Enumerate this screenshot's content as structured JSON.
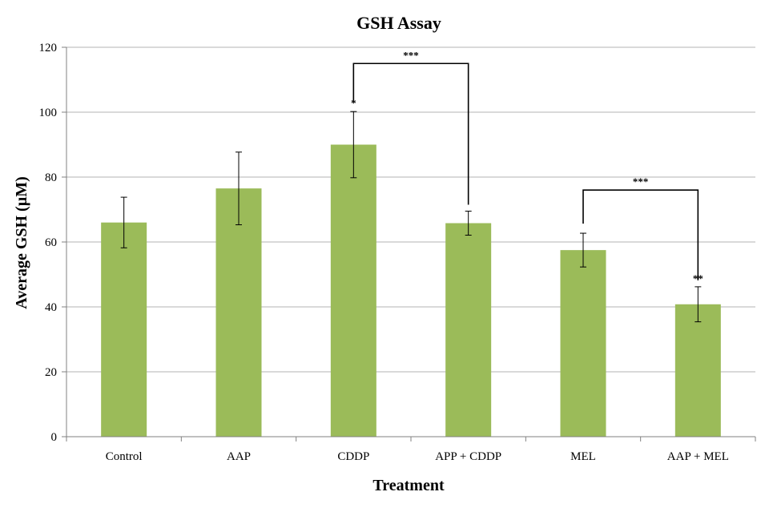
{
  "chart_data": {
    "type": "bar",
    "title": "GSH Assay",
    "xlabel": "Treatment",
    "ylabel": "Average GSH (µM)",
    "ylim": [
      0,
      120
    ],
    "yticks": [
      0,
      20,
      40,
      60,
      80,
      100,
      120
    ],
    "grid": true,
    "bar_color": "#9bbb59",
    "categories": [
      "Control",
      "AAP",
      "CDDP",
      "APP + CDDP",
      "MEL",
      "AAP + MEL"
    ],
    "values": [
      66,
      76.5,
      90,
      65.8,
      57.5,
      40.8
    ],
    "error": [
      7.8,
      11.2,
      10.2,
      3.7,
      5.2,
      5.4
    ],
    "bar_annotations": [
      "",
      "",
      "*",
      "",
      "",
      "**"
    ],
    "brackets": [
      {
        "from": 2,
        "to": 3,
        "y": 115,
        "label": "***"
      },
      {
        "from": 4,
        "to": 5,
        "y": 76,
        "label": "***"
      }
    ]
  }
}
